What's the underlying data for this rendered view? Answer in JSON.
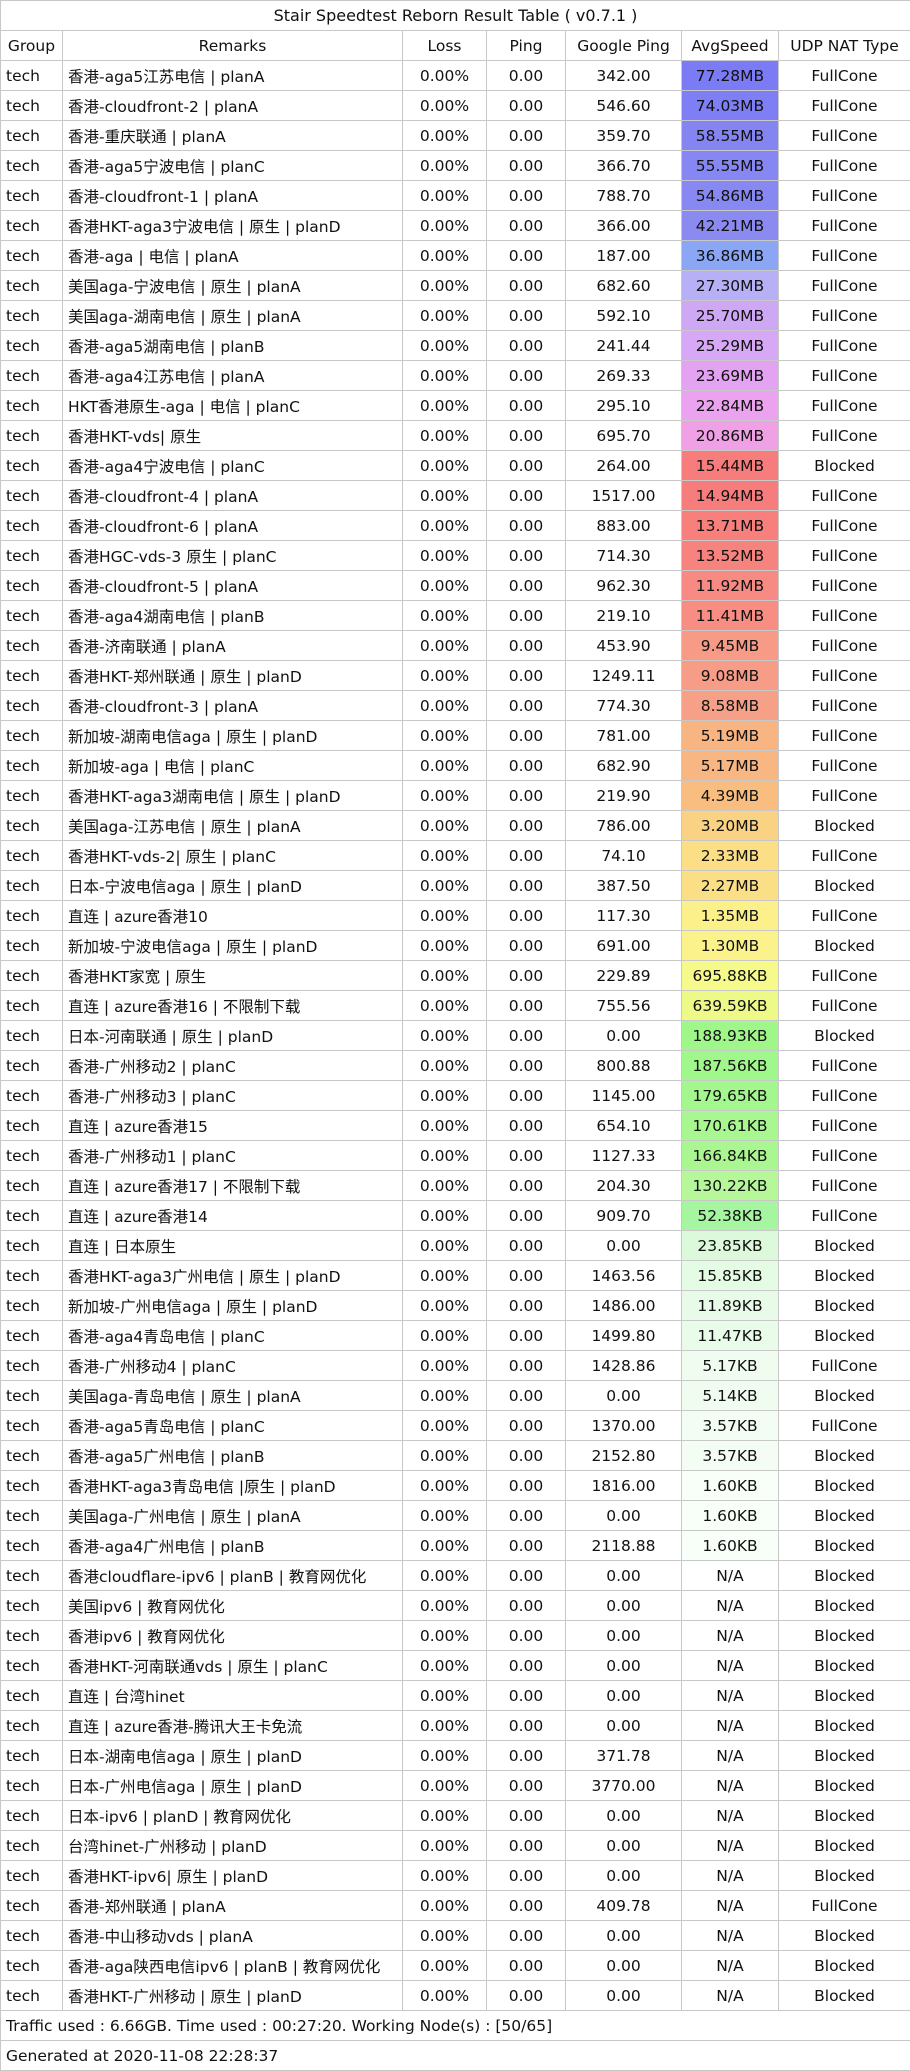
{
  "title": "Stair Speedtest Reborn Result Table ( v0.7.1 )",
  "columns": [
    "Group",
    "Remarks",
    "Loss",
    "Ping",
    "Google Ping",
    "AvgSpeed",
    "UDP NAT Type"
  ],
  "rows": [
    {
      "group": "tech",
      "remarks": "香港-aga5江苏电信 | planA",
      "loss": "0.00%",
      "ping": "0.00",
      "google_ping": "342.00",
      "avg_speed": "77.28MB",
      "nat": "FullCone",
      "color": "#7b7bf5"
    },
    {
      "group": "tech",
      "remarks": "香港-cloudfront-2 | planA",
      "loss": "0.00%",
      "ping": "0.00",
      "google_ping": "546.60",
      "avg_speed": "74.03MB",
      "nat": "FullCone",
      "color": "#7e7ef5"
    },
    {
      "group": "tech",
      "remarks": "香港-重庆联通 | planA",
      "loss": "0.00%",
      "ping": "0.00",
      "google_ping": "359.70",
      "avg_speed": "58.55MB",
      "nat": "FullCone",
      "color": "#8585f2"
    },
    {
      "group": "tech",
      "remarks": "香港-aga5宁波电信 | planC",
      "loss": "0.00%",
      "ping": "0.00",
      "google_ping": "366.70",
      "avg_speed": "55.55MB",
      "nat": "FullCone",
      "color": "#8787f3"
    },
    {
      "group": "tech",
      "remarks": "香港-cloudfront-1 | planA",
      "loss": "0.00%",
      "ping": "0.00",
      "google_ping": "788.70",
      "avg_speed": "54.86MB",
      "nat": "FullCone",
      "color": "#8888f3"
    },
    {
      "group": "tech",
      "remarks": "香港HKT-aga3宁波电信 | 原生 | planD",
      "loss": "0.00%",
      "ping": "0.00",
      "google_ping": "366.00",
      "avg_speed": "42.21MB",
      "nat": "FullCone",
      "color": "#8a8af0"
    },
    {
      "group": "tech",
      "remarks": "香港-aga | 电信 | planA",
      "loss": "0.00%",
      "ping": "0.00",
      "google_ping": "187.00",
      "avg_speed": "36.86MB",
      "nat": "FullCone",
      "color": "#8aa6f5"
    },
    {
      "group": "tech",
      "remarks": "美国aga-宁波电信 | 原生 | planA",
      "loss": "0.00%",
      "ping": "0.00",
      "google_ping": "682.60",
      "avg_speed": "27.30MB",
      "nat": "FullCone",
      "color": "#b7b0f7"
    },
    {
      "group": "tech",
      "remarks": "美国aga-湖南电信 | 原生 | planA",
      "loss": "0.00%",
      "ping": "0.00",
      "google_ping": "592.10",
      "avg_speed": "25.70MB",
      "nat": "FullCone",
      "color": "#cfa8f5"
    },
    {
      "group": "tech",
      "remarks": "香港-aga5湖南电信 | planB",
      "loss": "0.00%",
      "ping": "0.00",
      "google_ping": "241.44",
      "avg_speed": "25.29MB",
      "nat": "FullCone",
      "color": "#d6a8f5"
    },
    {
      "group": "tech",
      "remarks": "香港-aga4江苏电信 | planA",
      "loss": "0.00%",
      "ping": "0.00",
      "google_ping": "269.33",
      "avg_speed": "23.69MB",
      "nat": "FullCone",
      "color": "#e3a3f2"
    },
    {
      "group": "tech",
      "remarks": "HKT香港原生-aga | 电信 | planC",
      "loss": "0.00%",
      "ping": "0.00",
      "google_ping": "295.10",
      "avg_speed": "22.84MB",
      "nat": "FullCone",
      "color": "#eba3ef"
    },
    {
      "group": "tech",
      "remarks": "香港HKT-vds| 原生",
      "loss": "0.00%",
      "ping": "0.00",
      "google_ping": "695.70",
      "avg_speed": "20.86MB",
      "nat": "FullCone",
      "color": "#f0a0e4"
    },
    {
      "group": "tech",
      "remarks": "香港-aga4宁波电信 | planC",
      "loss": "0.00%",
      "ping": "0.00",
      "google_ping": "264.00",
      "avg_speed": "15.44MB",
      "nat": "Blocked",
      "color": "#f77c7c"
    },
    {
      "group": "tech",
      "remarks": "香港-cloudfront-4 | planA",
      "loss": "0.00%",
      "ping": "0.00",
      "google_ping": "1517.00",
      "avg_speed": "14.94MB",
      "nat": "FullCone",
      "color": "#f77d7d"
    },
    {
      "group": "tech",
      "remarks": "香港-cloudfront-6 | planA",
      "loss": "0.00%",
      "ping": "0.00",
      "google_ping": "883.00",
      "avg_speed": "13.71MB",
      "nat": "FullCone",
      "color": "#f7807d"
    },
    {
      "group": "tech",
      "remarks": "香港HGC-vds-3 原生 | planC",
      "loss": "0.00%",
      "ping": "0.00",
      "google_ping": "714.30",
      "avg_speed": "13.52MB",
      "nat": "FullCone",
      "color": "#f7837f"
    },
    {
      "group": "tech",
      "remarks": "香港-cloudfront-5 | planA",
      "loss": "0.00%",
      "ping": "0.00",
      "google_ping": "962.30",
      "avg_speed": "11.92MB",
      "nat": "FullCone",
      "color": "#f78a82"
    },
    {
      "group": "tech",
      "remarks": "香港-aga4湖南电信 | planB",
      "loss": "0.00%",
      "ping": "0.00",
      "google_ping": "219.10",
      "avg_speed": "11.41MB",
      "nat": "FullCone",
      "color": "#f78d83"
    },
    {
      "group": "tech",
      "remarks": "香港-济南联通 | planA",
      "loss": "0.00%",
      "ping": "0.00",
      "google_ping": "453.90",
      "avg_speed": "9.45MB",
      "nat": "FullCone",
      "color": "#f79a86"
    },
    {
      "group": "tech",
      "remarks": "香港HKT-郑州联通 | 原生 | planD",
      "loss": "0.00%",
      "ping": "0.00",
      "google_ping": "1249.11",
      "avg_speed": "9.08MB",
      "nat": "FullCone",
      "color": "#f79c87"
    },
    {
      "group": "tech",
      "remarks": "香港-cloudfront-3 | planA",
      "loss": "0.00%",
      "ping": "0.00",
      "google_ping": "774.30",
      "avg_speed": "8.58MB",
      "nat": "FullCone",
      "color": "#f7a088"
    },
    {
      "group": "tech",
      "remarks": "新加坡-湖南电信aga | 原生 | planD",
      "loss": "0.00%",
      "ping": "0.00",
      "google_ping": "781.00",
      "avg_speed": "5.19MB",
      "nat": "FullCone",
      "color": "#f8b582"
    },
    {
      "group": "tech",
      "remarks": "新加坡-aga | 电信 | planC",
      "loss": "0.00%",
      "ping": "0.00",
      "google_ping": "682.90",
      "avg_speed": "5.17MB",
      "nat": "FullCone",
      "color": "#f8b683"
    },
    {
      "group": "tech",
      "remarks": "香港HKT-aga3湖南电信 | 原生 | planD",
      "loss": "0.00%",
      "ping": "0.00",
      "google_ping": "219.90",
      "avg_speed": "4.39MB",
      "nat": "FullCone",
      "color": "#f9bd80"
    },
    {
      "group": "tech",
      "remarks": "美国aga-江苏电信 | 原生 | planA",
      "loss": "0.00%",
      "ping": "0.00",
      "google_ping": "786.00",
      "avg_speed": "3.20MB",
      "nat": "Blocked",
      "color": "#fad283"
    },
    {
      "group": "tech",
      "remarks": "香港HKT-vds-2| 原生 | planC",
      "loss": "0.00%",
      "ping": "0.00",
      "google_ping": "74.10",
      "avg_speed": "2.33MB",
      "nat": "FullCone",
      "color": "#fbde85"
    },
    {
      "group": "tech",
      "remarks": "日本-宁波电信aga | 原生 | planD",
      "loss": "0.00%",
      "ping": "0.00",
      "google_ping": "387.50",
      "avg_speed": "2.27MB",
      "nat": "Blocked",
      "color": "#fbdf86"
    },
    {
      "group": "tech",
      "remarks": "直连 | azure香港10",
      "loss": "0.00%",
      "ping": "0.00",
      "google_ping": "117.30",
      "avg_speed": "1.35MB",
      "nat": "FullCone",
      "color": "#fcf08a"
    },
    {
      "group": "tech",
      "remarks": "新加坡-宁波电信aga | 原生 | planD",
      "loss": "0.00%",
      "ping": "0.00",
      "google_ping": "691.00",
      "avg_speed": "1.30MB",
      "nat": "Blocked",
      "color": "#fcf28b"
    },
    {
      "group": "tech",
      "remarks": "香港HKT家宽 | 原生",
      "loss": "0.00%",
      "ping": "0.00",
      "google_ping": "229.89",
      "avg_speed": "695.88KB",
      "nat": "FullCone",
      "color": "#f6fa8a"
    },
    {
      "group": "tech",
      "remarks": "直连 | azure香港16 | 不限制下载",
      "loss": "0.00%",
      "ping": "0.00",
      "google_ping": "755.56",
      "avg_speed": "639.59KB",
      "nat": "FullCone",
      "color": "#eefa88"
    },
    {
      "group": "tech",
      "remarks": "日本-河南联通 | 原生 | planD",
      "loss": "0.00%",
      "ping": "0.00",
      "google_ping": "0.00",
      "avg_speed": "188.93KB",
      "nat": "Blocked",
      "color": "#9ff78a"
    },
    {
      "group": "tech",
      "remarks": "香港-广州移动2 | planC",
      "loss": "0.00%",
      "ping": "0.00",
      "google_ping": "800.88",
      "avg_speed": "187.56KB",
      "nat": "FullCone",
      "color": "#a0f78b"
    },
    {
      "group": "tech",
      "remarks": "香港-广州移动3 | planC",
      "loss": "0.00%",
      "ping": "0.00",
      "google_ping": "1145.00",
      "avg_speed": "179.65KB",
      "nat": "FullCone",
      "color": "#a4f78e"
    },
    {
      "group": "tech",
      "remarks": "直连 | azure香港15",
      "loss": "0.00%",
      "ping": "0.00",
      "google_ping": "654.10",
      "avg_speed": "170.61KB",
      "nat": "FullCone",
      "color": "#a8f790"
    },
    {
      "group": "tech",
      "remarks": "香港-广州移动1 | planC",
      "loss": "0.00%",
      "ping": "0.00",
      "google_ping": "1127.33",
      "avg_speed": "166.84KB",
      "nat": "FullCone",
      "color": "#aaf792"
    },
    {
      "group": "tech",
      "remarks": "直连 | azure香港17 | 不限制下载",
      "loss": "0.00%",
      "ping": "0.00",
      "google_ping": "204.30",
      "avg_speed": "130.22KB",
      "nat": "FullCone",
      "color": "#b6f79a"
    },
    {
      "group": "tech",
      "remarks": "直连 | azure香港14",
      "loss": "0.00%",
      "ping": "0.00",
      "google_ping": "909.70",
      "avg_speed": "52.38KB",
      "nat": "FullCone",
      "color": "#a6f5a0"
    },
    {
      "group": "tech",
      "remarks": "直连 | 日本原生",
      "loss": "0.00%",
      "ping": "0.00",
      "google_ping": "0.00",
      "avg_speed": "23.85KB",
      "nat": "Blocked",
      "color": "#dcf9dc"
    },
    {
      "group": "tech",
      "remarks": "香港HKT-aga3广州电信 | 原生 | planD",
      "loss": "0.00%",
      "ping": "0.00",
      "google_ping": "1463.56",
      "avg_speed": "15.85KB",
      "nat": "Blocked",
      "color": "#e4fbe4"
    },
    {
      "group": "tech",
      "remarks": "新加坡-广州电信aga | 原生 | planD",
      "loss": "0.00%",
      "ping": "0.00",
      "google_ping": "1486.00",
      "avg_speed": "11.89KB",
      "nat": "Blocked",
      "color": "#e8fbe8"
    },
    {
      "group": "tech",
      "remarks": "香港-aga4青岛电信 | planC",
      "loss": "0.00%",
      "ping": "0.00",
      "google_ping": "1499.80",
      "avg_speed": "11.47KB",
      "nat": "Blocked",
      "color": "#e9fbe9"
    },
    {
      "group": "tech",
      "remarks": "香港-广州移动4 | planC",
      "loss": "0.00%",
      "ping": "0.00",
      "google_ping": "1428.86",
      "avg_speed": "5.17KB",
      "nat": "FullCone",
      "color": "#f1fcf1"
    },
    {
      "group": "tech",
      "remarks": "美国aga-青岛电信 | 原生 | planA",
      "loss": "0.00%",
      "ping": "0.00",
      "google_ping": "0.00",
      "avg_speed": "5.14KB",
      "nat": "Blocked",
      "color": "#f1fcf1"
    },
    {
      "group": "tech",
      "remarks": "香港-aga5青岛电信 | planC",
      "loss": "0.00%",
      "ping": "0.00",
      "google_ping": "1370.00",
      "avg_speed": "3.57KB",
      "nat": "FullCone",
      "color": "#f4fdf4"
    },
    {
      "group": "tech",
      "remarks": "香港-aga5广州电信 | planB",
      "loss": "0.00%",
      "ping": "0.00",
      "google_ping": "2152.80",
      "avg_speed": "3.57KB",
      "nat": "Blocked",
      "color": "#f4fdf4"
    },
    {
      "group": "tech",
      "remarks": "香港HKT-aga3青岛电信 |原生 | planD",
      "loss": "0.00%",
      "ping": "0.00",
      "google_ping": "1816.00",
      "avg_speed": "1.60KB",
      "nat": "Blocked",
      "color": "#f8fef8"
    },
    {
      "group": "tech",
      "remarks": "美国aga-广州电信 | 原生 | planA",
      "loss": "0.00%",
      "ping": "0.00",
      "google_ping": "0.00",
      "avg_speed": "1.60KB",
      "nat": "Blocked",
      "color": "#f8fef8"
    },
    {
      "group": "tech",
      "remarks": "香港-aga4广州电信 | planB",
      "loss": "0.00%",
      "ping": "0.00",
      "google_ping": "2118.88",
      "avg_speed": "1.60KB",
      "nat": "Blocked",
      "color": "#f8fef8"
    },
    {
      "group": "tech",
      "remarks": "香港cloudflare-ipv6 | planB | 教育网优化",
      "loss": "0.00%",
      "ping": "0.00",
      "google_ping": "0.00",
      "avg_speed": "N/A",
      "nat": "Blocked",
      "color": "#ffffff"
    },
    {
      "group": "tech",
      "remarks": "美国ipv6 | 教育网优化",
      "loss": "0.00%",
      "ping": "0.00",
      "google_ping": "0.00",
      "avg_speed": "N/A",
      "nat": "Blocked",
      "color": "#ffffff"
    },
    {
      "group": "tech",
      "remarks": "香港ipv6 | 教育网优化",
      "loss": "0.00%",
      "ping": "0.00",
      "google_ping": "0.00",
      "avg_speed": "N/A",
      "nat": "Blocked",
      "color": "#ffffff"
    },
    {
      "group": "tech",
      "remarks": "香港HKT-河南联通vds | 原生 | planC",
      "loss": "0.00%",
      "ping": "0.00",
      "google_ping": "0.00",
      "avg_speed": "N/A",
      "nat": "Blocked",
      "color": "#ffffff"
    },
    {
      "group": "tech",
      "remarks": "直连 | 台湾hinet",
      "loss": "0.00%",
      "ping": "0.00",
      "google_ping": "0.00",
      "avg_speed": "N/A",
      "nat": "Blocked",
      "color": "#ffffff"
    },
    {
      "group": "tech",
      "remarks": "直连 | azure香港-腾讯大王卡免流",
      "loss": "0.00%",
      "ping": "0.00",
      "google_ping": "0.00",
      "avg_speed": "N/A",
      "nat": "Blocked",
      "color": "#ffffff"
    },
    {
      "group": "tech",
      "remarks": "日本-湖南电信aga | 原生 | planD",
      "loss": "0.00%",
      "ping": "0.00",
      "google_ping": "371.78",
      "avg_speed": "N/A",
      "nat": "Blocked",
      "color": "#ffffff"
    },
    {
      "group": "tech",
      "remarks": "日本-广州电信aga | 原生 | planD",
      "loss": "0.00%",
      "ping": "0.00",
      "google_ping": "3770.00",
      "avg_speed": "N/A",
      "nat": "Blocked",
      "color": "#ffffff"
    },
    {
      "group": "tech",
      "remarks": "日本-ipv6 | planD | 教育网优化",
      "loss": "0.00%",
      "ping": "0.00",
      "google_ping": "0.00",
      "avg_speed": "N/A",
      "nat": "Blocked",
      "color": "#ffffff"
    },
    {
      "group": "tech",
      "remarks": "台湾hinet-广州移动 | planD",
      "loss": "0.00%",
      "ping": "0.00",
      "google_ping": "0.00",
      "avg_speed": "N/A",
      "nat": "Blocked",
      "color": "#ffffff"
    },
    {
      "group": "tech",
      "remarks": "香港HKT-ipv6| 原生 | planD",
      "loss": "0.00%",
      "ping": "0.00",
      "google_ping": "0.00",
      "avg_speed": "N/A",
      "nat": "Blocked",
      "color": "#ffffff"
    },
    {
      "group": "tech",
      "remarks": "香港-郑州联通 | planA",
      "loss": "0.00%",
      "ping": "0.00",
      "google_ping": "409.78",
      "avg_speed": "N/A",
      "nat": "FullCone",
      "color": "#ffffff"
    },
    {
      "group": "tech",
      "remarks": "香港-中山移动vds | planA",
      "loss": "0.00%",
      "ping": "0.00",
      "google_ping": "0.00",
      "avg_speed": "N/A",
      "nat": "Blocked",
      "color": "#ffffff"
    },
    {
      "group": "tech",
      "remarks": "香港-aga陕西电信ipv6 | planB | 教育网优化",
      "loss": "0.00%",
      "ping": "0.00",
      "google_ping": "0.00",
      "avg_speed": "N/A",
      "nat": "Blocked",
      "color": "#ffffff"
    },
    {
      "group": "tech",
      "remarks": "香港HKT-广州移动 | 原生 | planD",
      "loss": "0.00%",
      "ping": "0.00",
      "google_ping": "0.00",
      "avg_speed": "N/A",
      "nat": "Blocked",
      "color": "#ffffff"
    }
  ],
  "footer": {
    "traffic": "Traffic used : 6.66GB. Time used : 00:27:20. Working Node(s) : [50/65]",
    "generated": "Generated at 2020-11-08 22:28:37"
  }
}
